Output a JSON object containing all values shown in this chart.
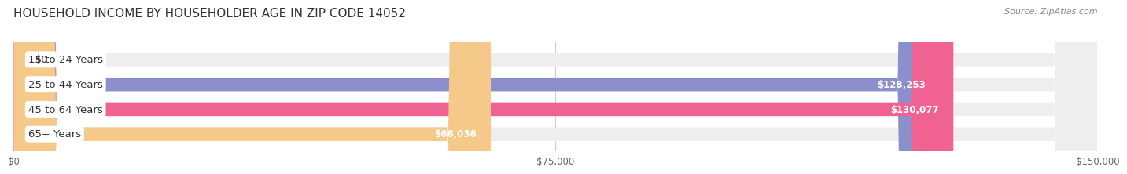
{
  "title": "HOUSEHOLD INCOME BY HOUSEHOLDER AGE IN ZIP CODE 14052",
  "source": "Source: ZipAtlas.com",
  "categories": [
    "15 to 24 Years",
    "25 to 44 Years",
    "45 to 64 Years",
    "65+ Years"
  ],
  "values": [
    0,
    128253,
    130077,
    66036
  ],
  "bar_colors": [
    "#5ecfca",
    "#8b8fcc",
    "#f06292",
    "#f5c98a"
  ],
  "track_color": "#eeeeee",
  "max_value": 150000,
  "x_ticks": [
    0,
    75000,
    150000
  ],
  "x_tick_labels": [
    "$0",
    "$75,000",
    "$150,000"
  ],
  "value_labels": [
    "$0",
    "$128,253",
    "$130,077",
    "$66,036"
  ],
  "label_bg_color": "#ffffff",
  "title_fontsize": 11,
  "source_fontsize": 8,
  "bar_height": 0.55,
  "background_color": "#ffffff"
}
